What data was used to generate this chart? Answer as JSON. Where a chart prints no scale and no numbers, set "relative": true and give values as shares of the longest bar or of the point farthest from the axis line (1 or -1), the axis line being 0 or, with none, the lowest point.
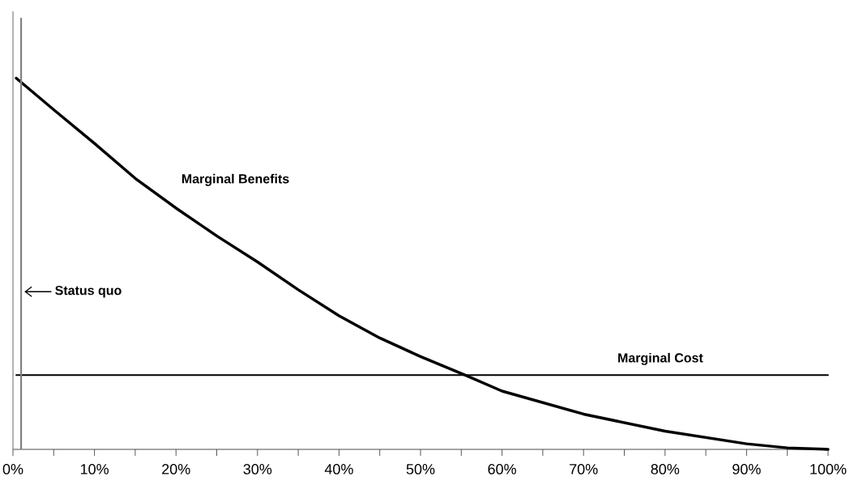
{
  "chart_data": {
    "type": "line",
    "relative": true,
    "legend": false,
    "grid": false,
    "marker": "none",
    "line_style": "solid",
    "xlim": [
      0,
      100
    ],
    "xticks": [
      {
        "value": 0,
        "label": "0%"
      },
      {
        "value": 5,
        "label": null
      },
      {
        "value": 10,
        "label": "10%"
      },
      {
        "value": 15,
        "label": null
      },
      {
        "value": 20,
        "label": "20%"
      },
      {
        "value": 25,
        "label": null
      },
      {
        "value": 30,
        "label": "30%"
      },
      {
        "value": 35,
        "label": null
      },
      {
        "value": 40,
        "label": "40%"
      },
      {
        "value": 45,
        "label": null
      },
      {
        "value": 50,
        "label": "50%"
      },
      {
        "value": 55,
        "label": null
      },
      {
        "value": 60,
        "label": "60%"
      },
      {
        "value": 65,
        "label": null
      },
      {
        "value": 70,
        "label": "70%"
      },
      {
        "value": 75,
        "label": null
      },
      {
        "value": 80,
        "label": "80%"
      },
      {
        "value": 85,
        "label": null
      },
      {
        "value": 90,
        "label": "90%"
      },
      {
        "value": 95,
        "label": null
      },
      {
        "value": 100,
        "label": "100%"
      }
    ],
    "series": [
      {
        "name": "Marginal Benefits",
        "color": "#000000",
        "x": [
          0.4,
          5,
          10,
          15,
          20,
          25,
          30,
          35,
          40,
          45,
          50,
          55.5,
          60,
          70,
          80,
          90,
          95,
          100
        ],
        "values": [
          1.0,
          0.915,
          0.824,
          0.73,
          0.65,
          0.575,
          0.505,
          0.43,
          0.36,
          0.3,
          0.25,
          0.2,
          0.157,
          0.095,
          0.049,
          0.015,
          0.004,
          0
        ]
      },
      {
        "name": "Marginal Cost",
        "color": "#000000",
        "x": [
          0.4,
          100
        ],
        "values": [
          0.2,
          0.2
        ]
      }
    ],
    "ref_lines": [
      {
        "axis": "x",
        "value": 1,
        "label": "Status quo",
        "color": "#808080"
      }
    ]
  }
}
